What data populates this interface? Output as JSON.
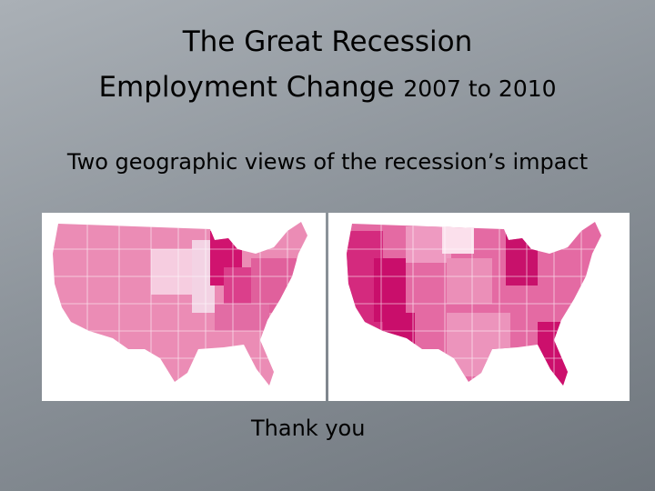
{
  "slide": {
    "title": {
      "line1": "The Great Recession",
      "line2_main": "Employment Change",
      "line2_dates": "2007 to 2010"
    },
    "subtitle": "Two geographic views of the recession’s impact",
    "closing": "Thank you"
  }
}
